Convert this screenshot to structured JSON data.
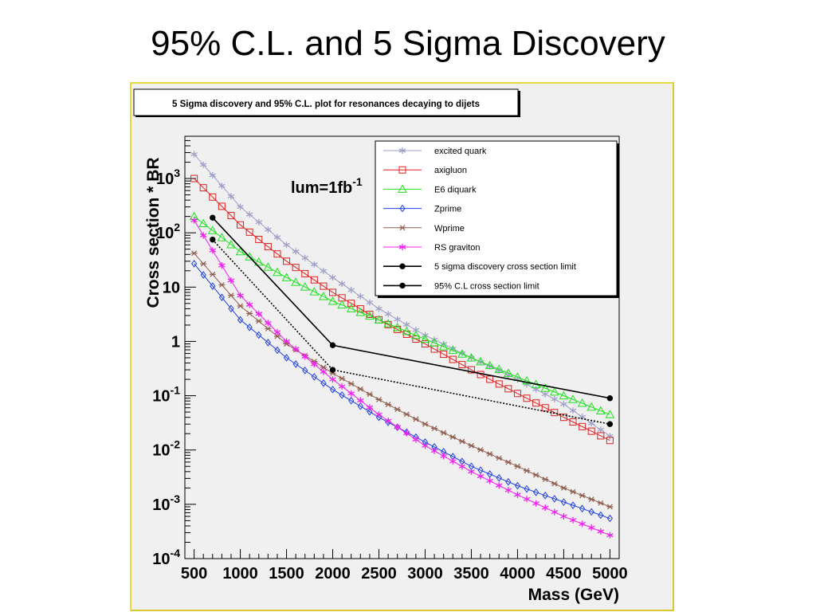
{
  "slide": {
    "title": "95% C.L. and 5 Sigma Discovery"
  },
  "colors": {
    "frame_border": "#e8d840",
    "panel_background": "#f0f0f0",
    "excited_quark": "#a0a0c8",
    "axigluon": "#e02020",
    "e6_diquark": "#20e020",
    "zprime": "#2040e0",
    "wprime": "#906050",
    "rs_graviton": "#f020f0",
    "limits": "#000000"
  },
  "chart_data": {
    "type": "line",
    "title": "5 Sigma discovery and 95% C.L. plot for resonances decaying to dijets",
    "xlabel": "Mass (GeV)",
    "ylabel": "Cross section * BR",
    "annotation_main": "lum=1fb",
    "annotation_sup": "-1",
    "x_scale": "linear",
    "y_scale": "log",
    "xlim": [
      400,
      5100
    ],
    "ylim": [
      0.0001,
      6000
    ],
    "grid": false,
    "legend_position": "top-right",
    "x_ticks": [
      "500",
      "1000",
      "1500",
      "2000",
      "2500",
      "3000",
      "3500",
      "4000",
      "4500",
      "5000"
    ],
    "y_ticks": [
      {
        "value": 0.0001,
        "base": "10",
        "exp": "-4"
      },
      {
        "value": 0.001,
        "base": "10",
        "exp": "-3"
      },
      {
        "value": 0.01,
        "base": "10",
        "exp": "-2"
      },
      {
        "value": 0.1,
        "base": "10",
        "exp": "-1"
      },
      {
        "value": 1,
        "base": "1",
        "exp": ""
      },
      {
        "value": 10,
        "base": "10",
        "exp": ""
      },
      {
        "value": 100,
        "base": "10",
        "exp": "2"
      },
      {
        "value": 1000,
        "base": "10",
        "exp": "3"
      }
    ],
    "mass_points": [
      500,
      600,
      700,
      800,
      900,
      1000,
      1100,
      1200,
      1300,
      1400,
      1500,
      1600,
      1700,
      1800,
      1900,
      2000,
      2100,
      2200,
      2300,
      2400,
      2500,
      2600,
      2700,
      2800,
      2900,
      3000,
      3100,
      3200,
      3300,
      3400,
      3500,
      3600,
      3700,
      3800,
      3900,
      4000,
      4100,
      4200,
      4300,
      4400,
      4500,
      4600,
      4700,
      4800,
      4900,
      5000
    ],
    "model_series": [
      {
        "name": "excited quark",
        "color": "#a0a0c8",
        "marker": "star",
        "anchors": [
          [
            500,
            2800
          ],
          [
            1000,
            300
          ],
          [
            1500,
            60
          ],
          [
            2000,
            15
          ],
          [
            2500,
            4
          ],
          [
            3000,
            1.3
          ],
          [
            3500,
            0.5
          ],
          [
            4000,
            0.2
          ],
          [
            4500,
            0.07
          ],
          [
            5000,
            0.018
          ]
        ]
      },
      {
        "name": "axigluon",
        "color": "#e02020",
        "marker": "square",
        "anchors": [
          [
            500,
            1000
          ],
          [
            1000,
            140
          ],
          [
            1500,
            30
          ],
          [
            2000,
            8
          ],
          [
            2500,
            2.5
          ],
          [
            3000,
            0.9
          ],
          [
            3500,
            0.3
          ],
          [
            4000,
            0.11
          ],
          [
            4500,
            0.04
          ],
          [
            5000,
            0.015
          ]
        ]
      },
      {
        "name": "E6 diquark",
        "color": "#20e020",
        "marker": "triangle",
        "anchors": [
          [
            500,
            200
          ],
          [
            1000,
            45
          ],
          [
            1500,
            15
          ],
          [
            2000,
            5.5
          ],
          [
            2500,
            2.5
          ],
          [
            3000,
            1.1
          ],
          [
            3500,
            0.5
          ],
          [
            4000,
            0.22
          ],
          [
            4500,
            0.1
          ],
          [
            5000,
            0.045
          ]
        ]
      },
      {
        "name": "Zprime",
        "color": "#2040e0",
        "marker": "diamond",
        "anchors": [
          [
            500,
            27
          ],
          [
            1000,
            2.5
          ],
          [
            1500,
            0.5
          ],
          [
            2000,
            0.13
          ],
          [
            2500,
            0.04
          ],
          [
            3000,
            0.014
          ],
          [
            3500,
            0.005
          ],
          [
            4000,
            0.0022
          ],
          [
            4500,
            0.0011
          ],
          [
            5000,
            0.00055
          ]
        ]
      },
      {
        "name": "Wprime",
        "color": "#906050",
        "marker": "asterisk",
        "anchors": [
          [
            500,
            42
          ],
          [
            1000,
            4.5
          ],
          [
            1500,
            0.9
          ],
          [
            2000,
            0.26
          ],
          [
            2500,
            0.085
          ],
          [
            3000,
            0.03
          ],
          [
            3500,
            0.012
          ],
          [
            4000,
            0.005
          ],
          [
            4500,
            0.002
          ],
          [
            5000,
            0.0009
          ]
        ]
      },
      {
        "name": "RS graviton",
        "color": "#f020f0",
        "marker": "star",
        "anchors": [
          [
            500,
            170
          ],
          [
            1000,
            7
          ],
          [
            1500,
            1
          ],
          [
            2000,
            0.2
          ],
          [
            2500,
            0.045
          ],
          [
            3000,
            0.012
          ],
          [
            3500,
            0.004
          ],
          [
            4000,
            0.0015
          ],
          [
            4500,
            0.0006
          ],
          [
            5000,
            0.00027
          ]
        ]
      }
    ],
    "limit_series": [
      {
        "name": "5 sigma discovery cross section limit",
        "color": "#000000",
        "marker": "dot",
        "style": "solid",
        "points": [
          [
            700,
            190
          ],
          [
            2000,
            0.85
          ],
          [
            5000,
            0.09
          ]
        ]
      },
      {
        "name": "95% C.L cross section limit",
        "color": "#000000",
        "marker": "dot",
        "style": "dotted",
        "points": [
          [
            700,
            75
          ],
          [
            2000,
            0.3
          ],
          [
            5000,
            0.03
          ]
        ]
      }
    ]
  }
}
